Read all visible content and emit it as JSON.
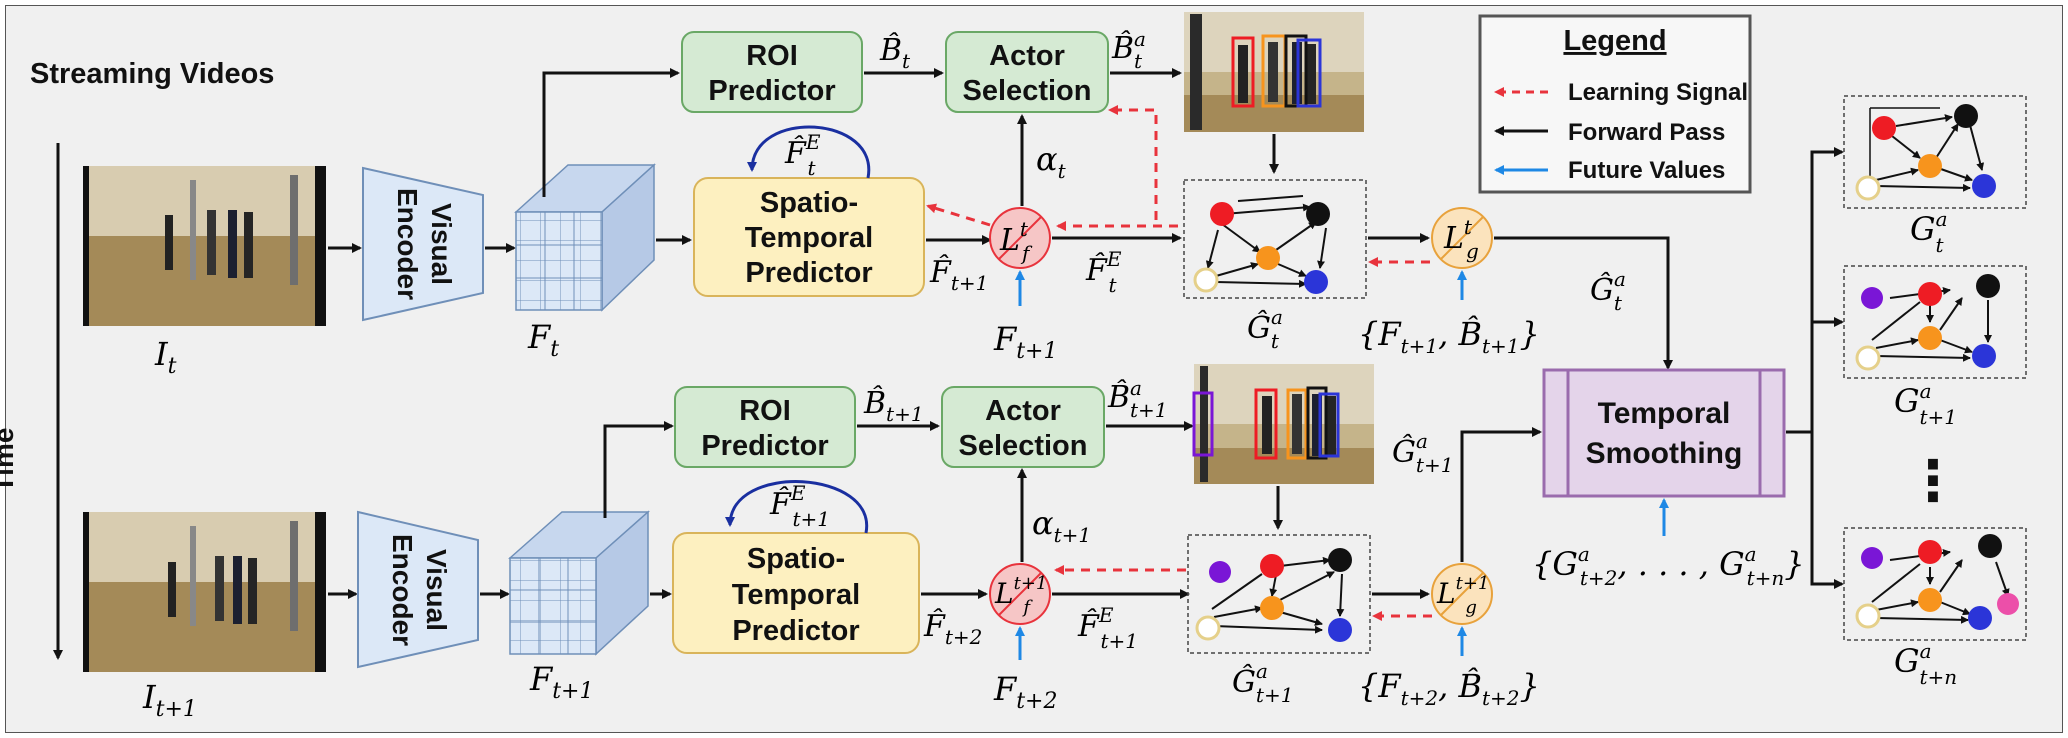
{
  "labels": {
    "streaming_videos": "Streaming Videos",
    "time": "Time",
    "visual_encoder_line1": "Visual",
    "visual_encoder_line2": "Encoder",
    "roi_line1": "ROI",
    "roi_line2": "Predictor",
    "actor_line1": "Actor",
    "actor_line2": "Selection",
    "stp_line1": "Spatio-",
    "stp_line2": "Temporal",
    "stp_line3": "Predictor",
    "ts_line1": "Temporal",
    "ts_line2": "Smoothing",
    "ellipsis": "⋮"
  },
  "legend": {
    "title": "Legend",
    "learning_signal": "Learning Signal",
    "forward_pass": "Forward Pass",
    "future_values": "Future Values"
  },
  "math": {
    "I_t": "I",
    "I_t_sub": "t",
    "I_t1": "I",
    "I_t1_sub": "t+1",
    "F_t": "F",
    "F_t_sub": "t",
    "F_t1": "F",
    "F_t1_sub": "t+1",
    "B_hat_t": "B̂",
    "B_hat_t_sub": "t",
    "B_hat_t_a": "B̂",
    "B_hat_t_a_sup": "a",
    "B_hat_t_a_sub": "t",
    "B_hat_t1": "B̂",
    "B_hat_t1_sub": "t+1",
    "B_hat_t1_a": "B̂",
    "B_hat_t1_a_sup": "a",
    "B_hat_t1_a_sub": "t+1",
    "alpha_t": "α",
    "alpha_t_sub": "t",
    "alpha_t1": "α",
    "alpha_t1_sub": "t+1",
    "F_hat_E_t": "F̂",
    "F_hat_E_t_sup": "E",
    "F_hat_E_t_sub": "t",
    "F_hat_E_t1": "F̂",
    "F_hat_E_t1_sup": "E",
    "F_hat_E_t1_sub": "t+1",
    "F_hat_t1": "F̂",
    "F_hat_t1_sub": "t+1",
    "F_hat_t2": "F̂",
    "F_hat_t2_sub": "t+2",
    "F_t1_future": "F",
    "F_t1_future_sub": "t+1",
    "F_t2_future": "F",
    "F_t2_future_sub": "t+2",
    "L_f_t": "L",
    "L_f_t_sup": "t",
    "L_f_t_sub": "f",
    "L_f_t1": "L",
    "L_f_t1_sup": "t+1",
    "L_f_t1_sub": "f",
    "L_g_t": "L",
    "L_g_t_sup": "t",
    "L_g_t_sub": "g",
    "L_g_t1": "L",
    "L_g_t1_sup": "t+1",
    "L_g_t1_sub": "g",
    "G_hat_t_a": "Ĝ",
    "G_hat_t_a_sup": "a",
    "G_hat_t_a_sub": "t",
    "G_hat_t1_a": "Ĝ",
    "G_hat_t1_a_sup": "a",
    "G_hat_t1_a_sub": "t+1",
    "G_hat_t_a_arrow": "Ĝ",
    "G_hat_t_a_arrow_sup": "a",
    "G_hat_t_a_arrow_sub": "t",
    "G_hat_t1_a_arrow": "Ĝ",
    "G_hat_t1_a_arrow_sup": "a",
    "G_hat_t1_a_arrow_sub": "t+1",
    "set_t1": "{F",
    "set_t1_sub1": "t+1",
    "set_t1_mid": ", B̂",
    "set_t1_sub2": "t+1",
    "set_t1_end": "}",
    "set_t2": "{F",
    "set_t2_sub1": "t+2",
    "set_t2_mid": ", B̂",
    "set_t2_sub2": "t+2",
    "set_t2_end": "}",
    "future_set": "{G",
    "future_set_sup1": "a",
    "future_set_sub1": "t+2",
    "future_set_mid": ", . . . , G",
    "future_set_sup2": "a",
    "future_set_sub2": "t+n",
    "future_set_end": "}",
    "G_t_a": "G",
    "G_t_a_sup": "a",
    "G_t_a_sub": "t",
    "G_t1_a": "G",
    "G_t1_a_sup": "a",
    "G_t1_a_sub": "t+1",
    "G_tn_a": "G",
    "G_tn_a_sup": "a",
    "G_tn_a_sub": "t+n"
  },
  "colors": {
    "roi_fill": "#d5ead3",
    "roi_stroke": "#6aa866",
    "stp_fill": "#fdf0c0",
    "stp_stroke": "#d9b45a",
    "encoder_fill": "#dce8f7",
    "encoder_stroke": "#6f8fb8",
    "ts_fill": "#e4d4ea",
    "ts_stroke": "#9a6bad",
    "loss_f_fill": "#f6c6c6",
    "loss_g_fill": "#fbe3bd",
    "learning_signal": "#e8333c",
    "forward_pass": "#111111",
    "future_values": "#1e88e5",
    "node_red": "#ee1c24",
    "node_black": "#111111",
    "node_orange": "#f7941d",
    "node_blue": "#2b35d8",
    "node_purple": "#7a16d6",
    "node_pink": "#ec4fa9",
    "node_hollow": "#e5d08a"
  }
}
